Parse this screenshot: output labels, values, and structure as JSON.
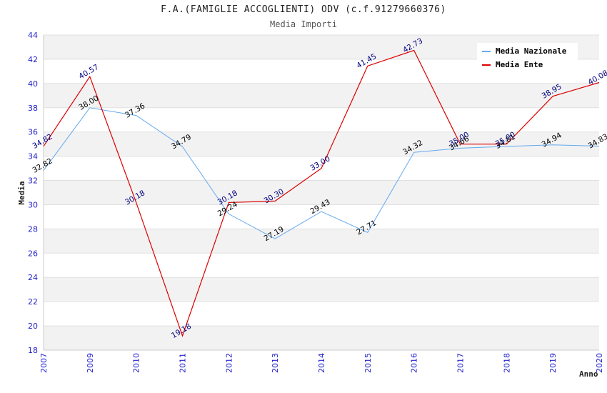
{
  "chart_data": {
    "type": "line",
    "title": "F.A.(FAMIGLIE ACCOGLIENTI) ODV (c.f.91279660376)",
    "subtitle": "Media Importi",
    "xlabel": "Anno",
    "ylabel": "Media",
    "categories": [
      "2007",
      "2009",
      "2010",
      "2011",
      "2012",
      "2013",
      "2014",
      "2015",
      "2016",
      "2017",
      "2018",
      "2019",
      "2020"
    ],
    "ylim": [
      18,
      44
    ],
    "yticks": [
      18,
      20,
      22,
      24,
      26,
      28,
      30,
      32,
      34,
      36,
      38,
      40,
      42,
      44
    ],
    "grid": "horizontal, alternating bands",
    "legend_position": "top-right",
    "series": [
      {
        "name": "Media Nazionale",
        "color": "#66aaee",
        "label_color": "#000000",
        "values": [
          32.82,
          38.0,
          37.36,
          34.79,
          29.24,
          27.19,
          29.43,
          27.71,
          34.32,
          34.66,
          34.81,
          34.94,
          34.83
        ]
      },
      {
        "name": "Media Ente",
        "color": "#dd0000",
        "label_color": "#000080",
        "values": [
          34.82,
          40.57,
          30.18,
          19.18,
          30.18,
          30.3,
          33.0,
          41.45,
          42.73,
          35.0,
          35.0,
          38.95,
          40.08
        ]
      }
    ]
  }
}
